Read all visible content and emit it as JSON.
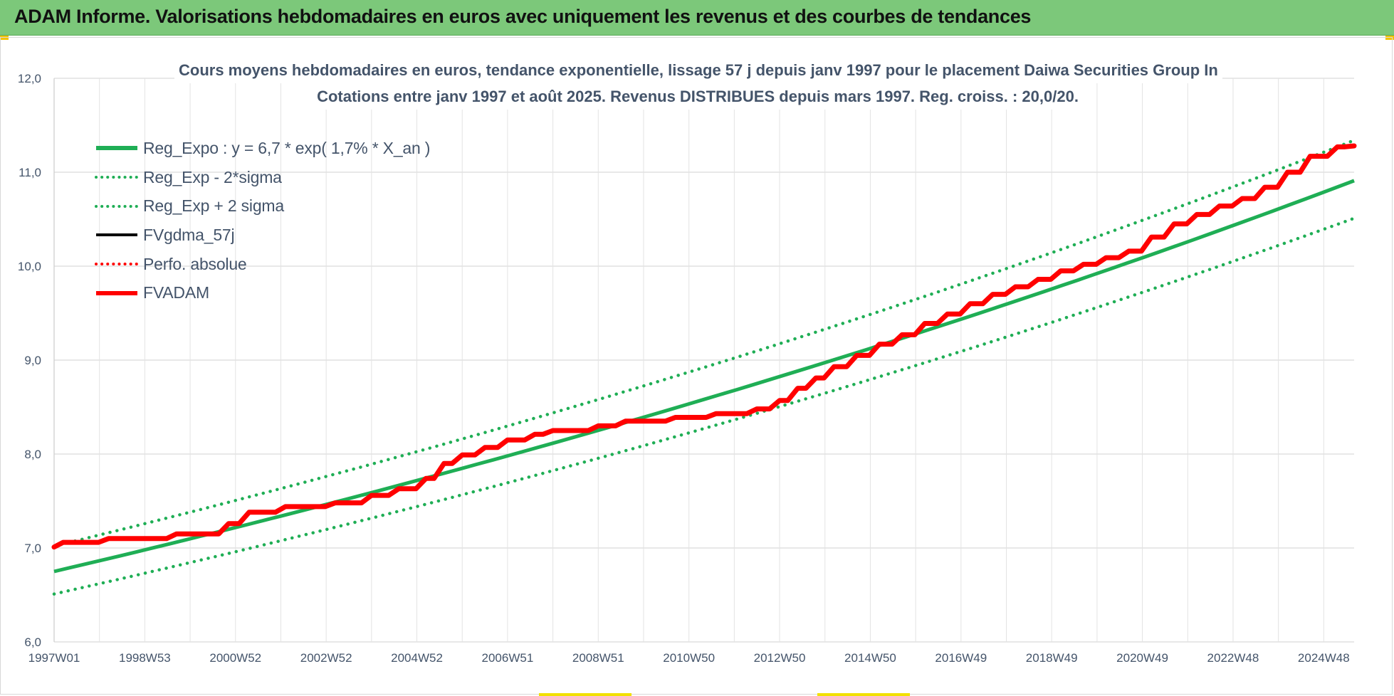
{
  "banner": {
    "title": "ADAM Informe. Valorisations hebdomadaires en euros avec uniquement les revenus et des courbes de tendances"
  },
  "chart_data": {
    "type": "line",
    "title_line1": "Cours moyens hebdomadaires en euros, tendance exponentielle, lissage 57 j depuis janv 1997 pour le placement Daiwa Securities Group In",
    "title_line2": "Cotations entre janv 1997 et août 2025.  Revenus DISTRIBUES depuis mars 1997. Reg. croiss. : 20,0/20.",
    "xlabel": "",
    "ylabel": "",
    "ylim": [
      6.0,
      12.0
    ],
    "yticks": [
      "6,0",
      "7,0",
      "8,0",
      "9,0",
      "10,0",
      "11,0",
      "12,0"
    ],
    "x_range_years": [
      1997.0,
      2025.67
    ],
    "xticks": [
      {
        "year": 1997.0,
        "label": "1997W01"
      },
      {
        "year": 1999.0,
        "label": "1998W53"
      },
      {
        "year": 2001.0,
        "label": "2000W52"
      },
      {
        "year": 2003.0,
        "label": "2002W52"
      },
      {
        "year": 2005.0,
        "label": "2004W52"
      },
      {
        "year": 2007.0,
        "label": "2006W51"
      },
      {
        "year": 2009.0,
        "label": "2008W51"
      },
      {
        "year": 2011.0,
        "label": "2010W50"
      },
      {
        "year": 2013.0,
        "label": "2012W50"
      },
      {
        "year": 2015.0,
        "label": "2014W50"
      },
      {
        "year": 2017.0,
        "label": "2016W49"
      },
      {
        "year": 2019.0,
        "label": "2018W49"
      },
      {
        "year": 2021.0,
        "label": "2020W49"
      },
      {
        "year": 2023.0,
        "label": "2022W48"
      },
      {
        "year": 2025.0,
        "label": "2024W48"
      }
    ],
    "grid": true,
    "legend_position": "top-left",
    "series": [
      {
        "name": "Reg_Expo : y = 6,7 * exp( 1,7% *  X_an )",
        "color": "#1fae55",
        "style": "solid",
        "x": [
          1997.0,
          2025.67
        ],
        "y": [
          6.75,
          10.91
        ]
      },
      {
        "name": "Reg_Exp - 2*sigma",
        "color": "#1fae55",
        "style": "dotted",
        "x": [
          1997.0,
          2025.67
        ],
        "y": [
          6.51,
          10.51
        ]
      },
      {
        "name": "Reg_Exp + 2 sigma",
        "color": "#1fae55",
        "style": "dotted",
        "x": [
          1997.0,
          2025.67
        ],
        "y": [
          7.02,
          11.34
        ]
      },
      {
        "name": "FVgdma_57j",
        "color": "#000000",
        "style": "solid",
        "x": [
          1997.0,
          1997.2,
          1998.2,
          1999.7,
          2000.85,
          2001.3,
          2002.1,
          2003.2,
          2004.0,
          2004.6,
          2005.2,
          2005.6,
          2006.0,
          2006.5,
          2007.0,
          2007.6,
          2008.0,
          2009.0,
          2009.6,
          2010.7,
          2011.6,
          2012.5,
          2013.0,
          2013.4,
          2013.8,
          2014.2,
          2014.7,
          2015.2,
          2015.7,
          2016.2,
          2016.7,
          2017.2,
          2017.7,
          2018.2,
          2018.7,
          2019.2,
          2019.7,
          2020.2,
          2020.7,
          2021.2,
          2021.7,
          2022.2,
          2022.7,
          2023.2,
          2023.7,
          2024.2,
          2024.7,
          2025.3,
          2025.67
        ],
        "y": [
          7.01,
          7.06,
          7.1,
          7.15,
          7.26,
          7.38,
          7.44,
          7.48,
          7.56,
          7.63,
          7.74,
          7.9,
          7.99,
          8.07,
          8.15,
          8.21,
          8.25,
          8.3,
          8.35,
          8.39,
          8.43,
          8.48,
          8.57,
          8.7,
          8.81,
          8.93,
          9.05,
          9.17,
          9.27,
          9.39,
          9.49,
          9.6,
          9.7,
          9.78,
          9.86,
          9.95,
          10.02,
          10.09,
          10.16,
          10.31,
          10.45,
          10.55,
          10.64,
          10.72,
          10.84,
          11.0,
          11.17,
          11.27,
          11.28
        ]
      },
      {
        "name": "Perfo. absolue",
        "color": "#ff0000",
        "style": "dotted",
        "x": [],
        "y": []
      },
      {
        "name": "FVADAM",
        "color": "#ff0000",
        "style": "solid",
        "x": [
          1997.0,
          1997.2,
          1998.2,
          1999.7,
          2000.85,
          2001.3,
          2002.1,
          2003.2,
          2004.0,
          2004.6,
          2005.2,
          2005.6,
          2006.0,
          2006.5,
          2007.0,
          2007.6,
          2008.0,
          2009.0,
          2009.6,
          2010.7,
          2011.6,
          2012.5,
          2013.0,
          2013.4,
          2013.8,
          2014.2,
          2014.7,
          2015.2,
          2015.7,
          2016.2,
          2016.7,
          2017.2,
          2017.7,
          2018.2,
          2018.7,
          2019.2,
          2019.7,
          2020.2,
          2020.7,
          2021.2,
          2021.7,
          2022.2,
          2022.7,
          2023.2,
          2023.7,
          2024.2,
          2024.7,
          2025.3,
          2025.67
        ],
        "y": [
          7.01,
          7.06,
          7.1,
          7.15,
          7.26,
          7.38,
          7.44,
          7.48,
          7.56,
          7.63,
          7.74,
          7.9,
          7.99,
          8.07,
          8.15,
          8.21,
          8.25,
          8.3,
          8.35,
          8.39,
          8.43,
          8.48,
          8.57,
          8.7,
          8.81,
          8.93,
          9.05,
          9.17,
          9.27,
          9.39,
          9.49,
          9.6,
          9.7,
          9.78,
          9.86,
          9.95,
          10.02,
          10.09,
          10.16,
          10.31,
          10.45,
          10.55,
          10.64,
          10.72,
          10.84,
          11.0,
          11.17,
          11.27,
          11.28
        ]
      }
    ]
  }
}
